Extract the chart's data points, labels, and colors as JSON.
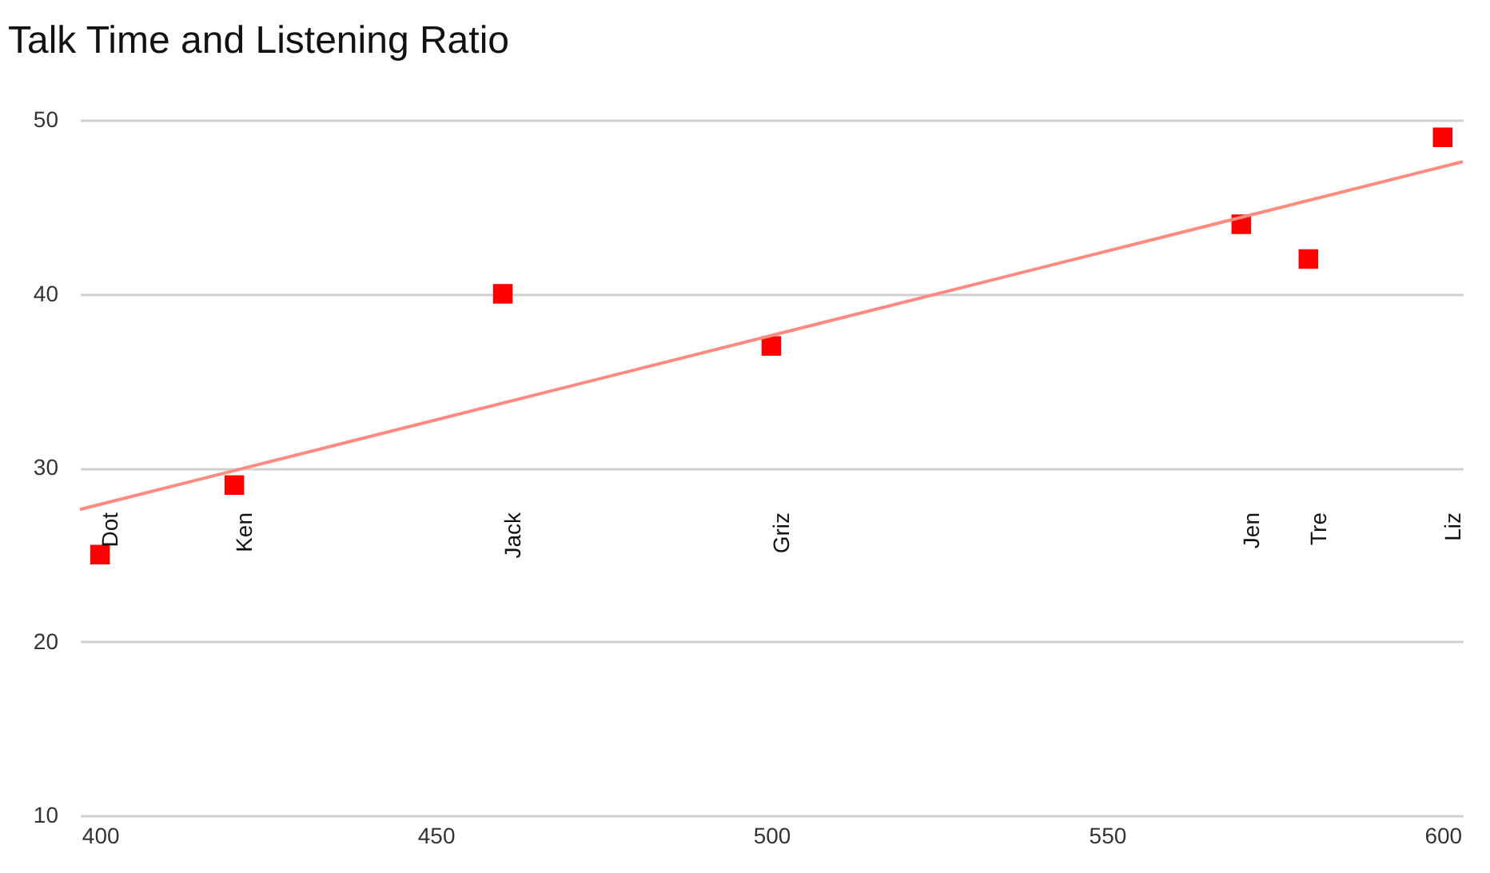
{
  "chart_data": {
    "type": "scatter",
    "title": "Talk Time and Listening Ratio",
    "series": [
      {
        "color": "#ff0000",
        "marker": "square",
        "x": [
          400,
          420,
          460,
          500,
          570,
          580,
          600
        ],
        "values": [
          25,
          29,
          40,
          37,
          44,
          42,
          49
        ]
      },
      {
        "type": "line",
        "color": "#ff8a80",
        "x": [
          397,
          603
        ],
        "values": [
          27.6,
          47.6
        ]
      }
    ],
    "xlim": [
      397,
      603
    ],
    "xticks": [
      400,
      450,
      500,
      550,
      600
    ],
    "ylim": [
      10,
      50
    ],
    "yticks": [
      10,
      20,
      30,
      40,
      50
    ],
    "annotations": [
      "Dot",
      "Ken",
      "Jack",
      "Griz",
      "Jen",
      "Tre",
      "Liz"
    ],
    "grid": "y"
  }
}
